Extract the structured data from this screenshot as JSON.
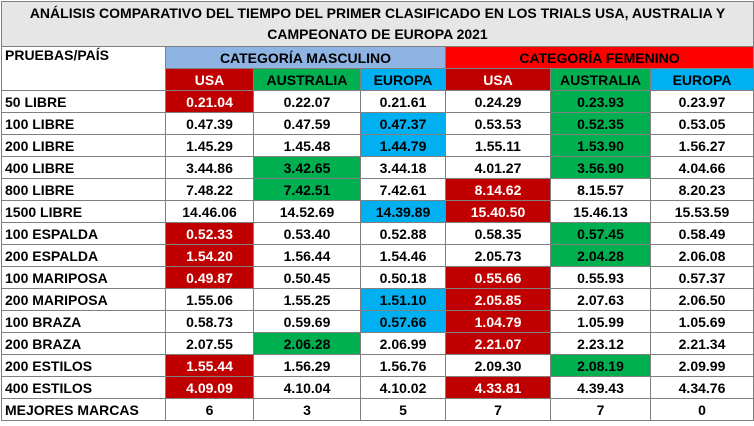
{
  "title": "ANÁLISIS COMPARATIVO  DEL TIEMPO DEL PRIMER CLASIFICADO  EN LOS TRIALS USA, AUSTRALIA  Y CAMPEONATO  DE EUROPA 2021",
  "header": {
    "label": "PRUEBAS/PAÍS",
    "groups": [
      "CATEGORÍA MASCULINO",
      "CATEGORÍA FEMENINO"
    ],
    "countries": [
      "USA",
      "AUSTRALIA",
      "EUROPA",
      "USA",
      "AUSTRALIA",
      "EUROPA"
    ]
  },
  "rows": [
    [
      "50 LIBRE",
      "0.21.04",
      "0.22.07",
      "0.21.61",
      "0.24.29",
      "0.23.93",
      "0.23.97"
    ],
    [
      "100 LIBRE",
      "0.47.39",
      "0.47.59",
      "0.47.37",
      "0.53.53",
      "0.52.35",
      "0.53.05"
    ],
    [
      "200 LIBRE",
      "1.45.29",
      "1.45.48",
      "1.44.79",
      "1.55.11",
      "1.53.90",
      "1.56.27"
    ],
    [
      "400 LIBRE",
      "3.44.86",
      "3.42.65",
      "3.44.18",
      "4.01.27",
      "3.56.90",
      "4.04.66"
    ],
    [
      "800 LIBRE",
      "7.48.22",
      "7.42.51",
      "7.42.61",
      "8.14.62",
      "8.15.57",
      "8.20.23"
    ],
    [
      "1500 LIBRE",
      "14.46.06",
      "14.52.69",
      "14.39.89",
      "15.40.50",
      "15.46.13",
      "15.53.59"
    ],
    [
      "100 ESPALDA",
      "0.52.33",
      "0.53.40",
      "0.52.88",
      "0.58.35",
      "0.57.45",
      "0.58.49"
    ],
    [
      "200 ESPALDA",
      "1.54.20",
      "1.56.44",
      "1.54.46",
      "2.05.73",
      "2.04.28",
      "2.06.08"
    ],
    [
      "100 MARIPOSA",
      "0.49.87",
      "0.50.45",
      "0.50.18",
      "0.55.66",
      "0.55.93",
      "0.57.37"
    ],
    [
      "200 MARIPOSA",
      "1.55.06",
      "1.55.25",
      "1.51.10",
      "2.05.85",
      "2.07.63",
      "2.06.50"
    ],
    [
      "100 BRAZA",
      "0.58.73",
      "0.59.69",
      "0.57.66",
      "1.04.79",
      "1.05.99",
      "1.05.69"
    ],
    [
      "200 BRAZA",
      "2.07.55",
      "2.06.28",
      "2.06.99",
      "2.21.07",
      "2.23.12",
      "2.21.34"
    ],
    [
      "200 ESTILOS",
      "1.55.44",
      "1.56.29",
      "1.56.76",
      "2.09.30",
      "2.08.19",
      "2.09.99"
    ],
    [
      "400 ESTILOS",
      "4.09.09",
      "4.10.04",
      "4.10.02",
      "4.33.81",
      "4.39.43",
      "4.34.76"
    ],
    [
      "MEJORES MARCAS",
      6,
      3,
      5,
      7,
      7,
      0
    ]
  ]
}
